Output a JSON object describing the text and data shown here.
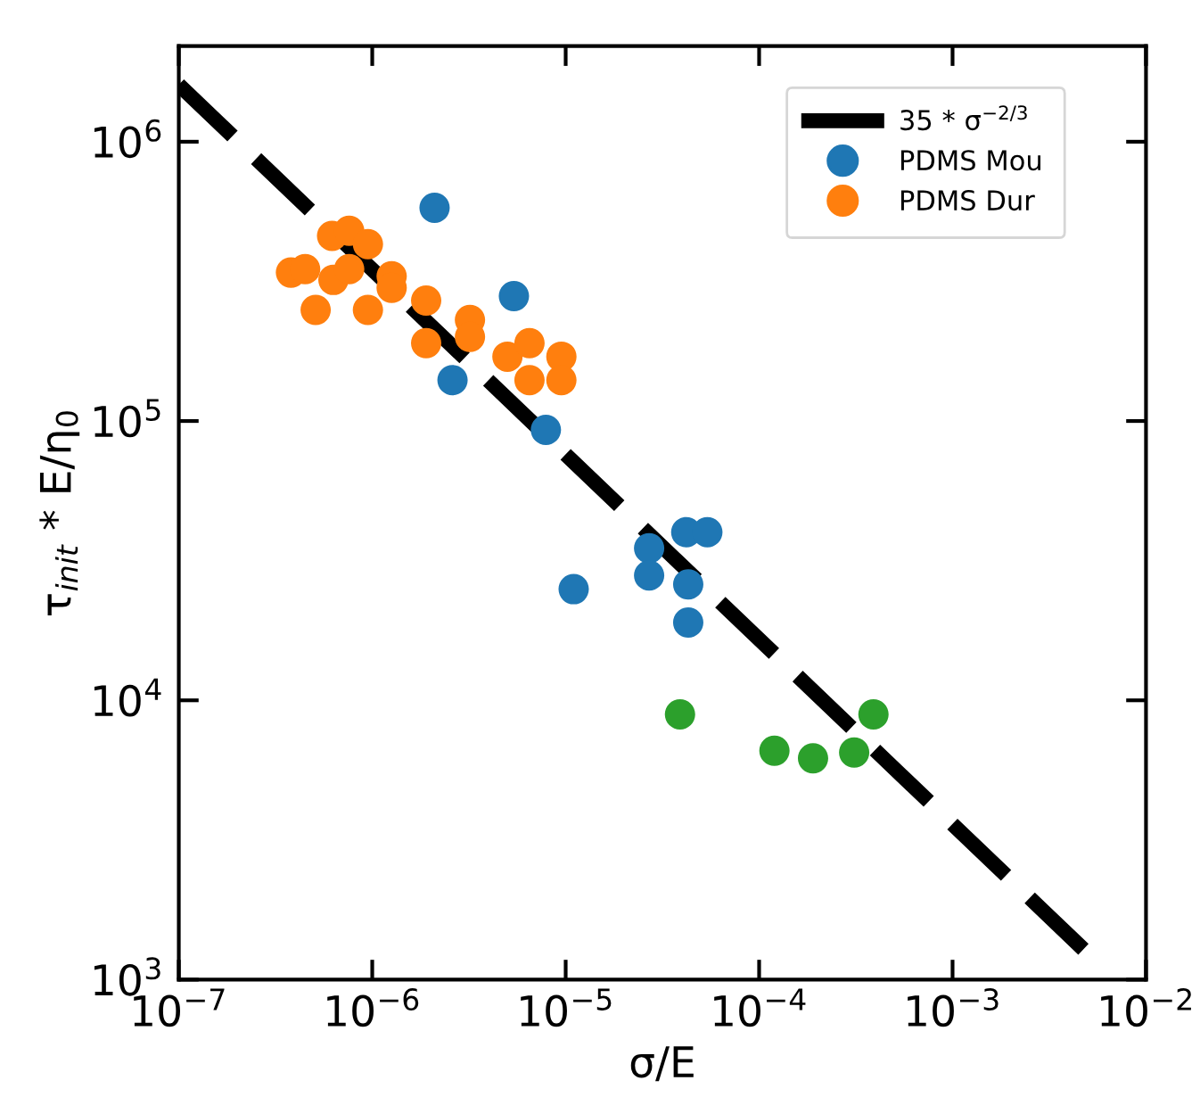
{
  "chart_data": {
    "type": "scatter",
    "xlabel": "σ/E",
    "ylabel": "τ$_{init}$ * E/η$_{0}$",
    "log": "xy",
    "legend": "top right",
    "grid": false,
    "xlim": [
      1e-07,
      0.01
    ],
    "ylim": [
      1000,
      2200000
    ],
    "xticks": [
      {
        "value": 1e-07,
        "label": "10$^{−7}$"
      },
      {
        "value": 1e-06,
        "label": "10$^{−6}$"
      },
      {
        "value": 1e-05,
        "label": "10$^{−5}$"
      },
      {
        "value": 0.0001,
        "label": "10$^{−4}$"
      },
      {
        "value": 0.001,
        "label": "10$^{−3}$"
      },
      {
        "value": 0.01,
        "label": "10$^{−2}$"
      }
    ],
    "yticks": [
      {
        "value": 1000,
        "label": "10$^{3}$"
      },
      {
        "value": 10000,
        "label": "10$^{4}$"
      },
      {
        "value": 100000,
        "label": "10$^{5}$"
      },
      {
        "value": 1000000,
        "label": "10$^{6}$"
      }
    ],
    "series": [
      {
        "name": "35 * σ$^{−2/3}$",
        "type": "line",
        "line_style": "dashed",
        "color": "#000000",
        "x": [
          1e-07,
          0.006
        ],
        "values": [
          1600000,
          1100
        ]
      },
      {
        "name": "PDMS Mou",
        "marker": "circle",
        "color": "#1f77b4",
        "x": [
          2.1e-06,
          5.4e-06,
          2.6e-06,
          7.9e-06,
          1.1e-05,
          2.7e-05,
          2.7e-05,
          4.2e-05,
          5.4e-05,
          4.3e-05,
          4.3e-05
        ],
        "values": [
          580000,
          280000,
          140000,
          93000,
          25000,
          35000,
          28000,
          40000,
          40000,
          26000,
          19000
        ]
      },
      {
        "name": "PDMS Dur",
        "marker": "circle",
        "color": "#ff7f0e",
        "x": [
          3.8e-07,
          4.5e-07,
          6.2e-07,
          7.6e-07,
          9.5e-07,
          5.1e-07,
          6.3e-07,
          7.6e-07,
          9.5e-07,
          1.26e-06,
          1.26e-06,
          1.9e-06,
          1.9e-06,
          3.2e-06,
          3.2e-06,
          5e-06,
          6.5e-06,
          9.5e-06,
          6.5e-06,
          9.5e-06
        ],
        "values": [
          340000,
          350000,
          460000,
          480000,
          430000,
          250000,
          320000,
          350000,
          250000,
          330000,
          300000,
          270000,
          190000,
          230000,
          200000,
          170000,
          190000,
          170000,
          140000,
          140000
        ]
      },
      {
        "marker": "circle",
        "color": "#2ca02c",
        "x": [
          3.9e-05,
          0.00012,
          0.00019,
          0.00031,
          0.00039
        ],
        "values": [
          8900,
          6600,
          6200,
          6500,
          8900
        ]
      }
    ]
  }
}
